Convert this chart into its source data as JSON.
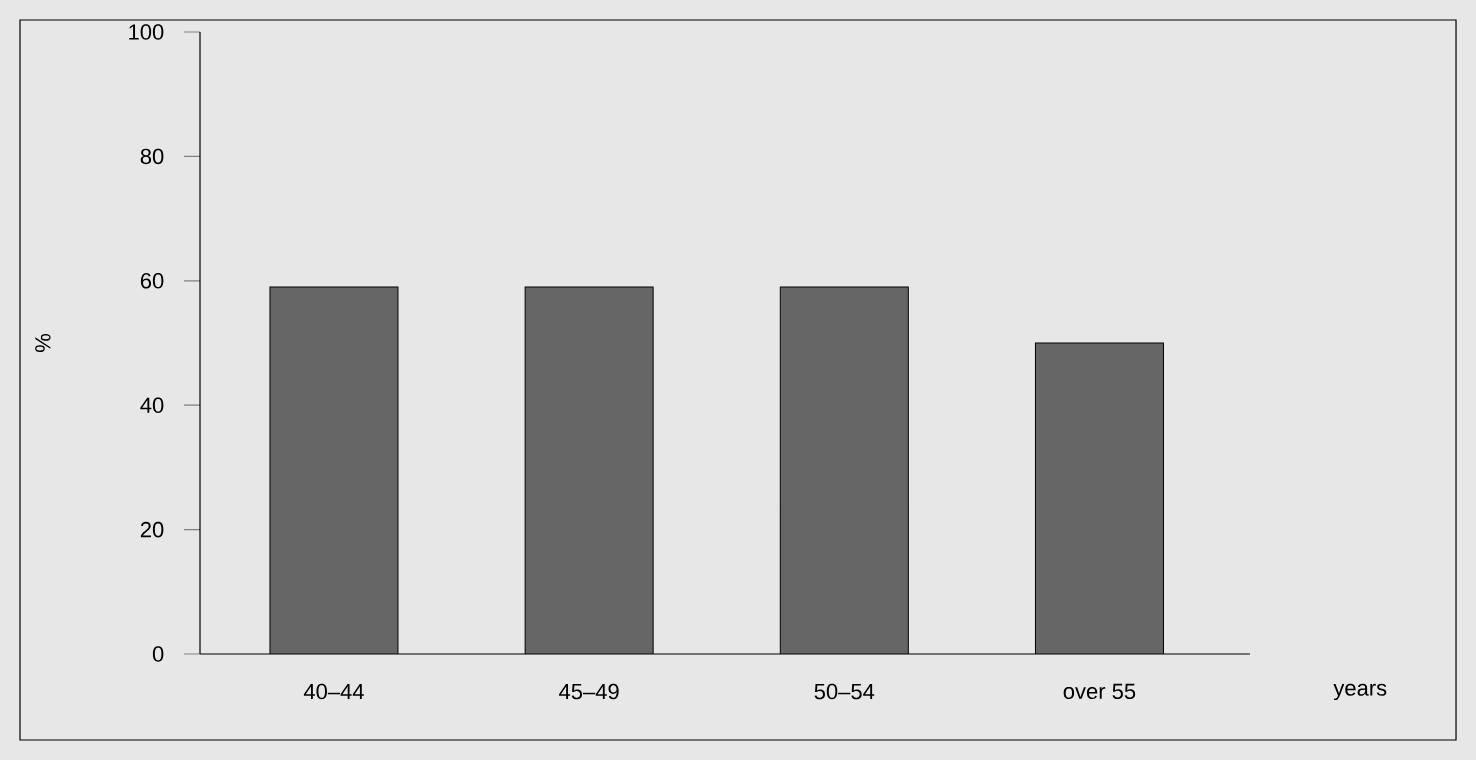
{
  "chart_data": {
    "type": "bar",
    "xlabel": "years",
    "ylabel": "%",
    "categories": [
      "40–44",
      "45–49",
      "50–54",
      "over 55"
    ],
    "values": [
      59,
      59,
      59,
      50
    ],
    "color": "#666666",
    "ylim": [
      0,
      100
    ],
    "yticks": [
      0,
      20,
      40,
      60,
      80,
      100
    ],
    "grid": false
  }
}
